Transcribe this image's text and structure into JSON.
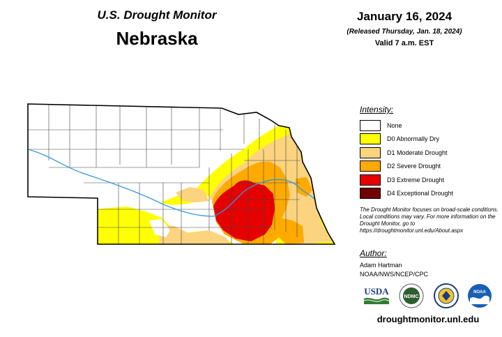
{
  "header": {
    "program": "U.S. Drought Monitor",
    "state": "Nebraska",
    "date": "January 16, 2024",
    "released": "(Released Thursday, Jan. 18, 2024)",
    "valid": "Valid 7 a.m. EST"
  },
  "legend": {
    "title": "Intensity:",
    "items": [
      {
        "label": "None",
        "color": "#ffffff"
      },
      {
        "label": "D0 Abnormally Dry",
        "color": "#ffff00"
      },
      {
        "label": "D1 Moderate Drought",
        "color": "#fcd37f"
      },
      {
        "label": "D2 Severe Drought",
        "color": "#ffaa00"
      },
      {
        "label": "D3 Extreme Drought",
        "color": "#e60000"
      },
      {
        "label": "D4 Exceptional Drought",
        "color": "#730000"
      }
    ]
  },
  "note": "The Drought Monitor focuses on broad-scale conditions. Local conditions may vary. For more information on the Drought Monitor, go to https://droughtmonitor.unl.edu/About.aspx",
  "author": {
    "title": "Author:",
    "name": "Adam Hartman",
    "org": "NOAA/NWS/NCEP/CPC"
  },
  "logos": {
    "usda": "USDA",
    "ndmc": "NDMC",
    "noaa": "NOAA"
  },
  "url": "droughtmonitor.unl.edu"
}
